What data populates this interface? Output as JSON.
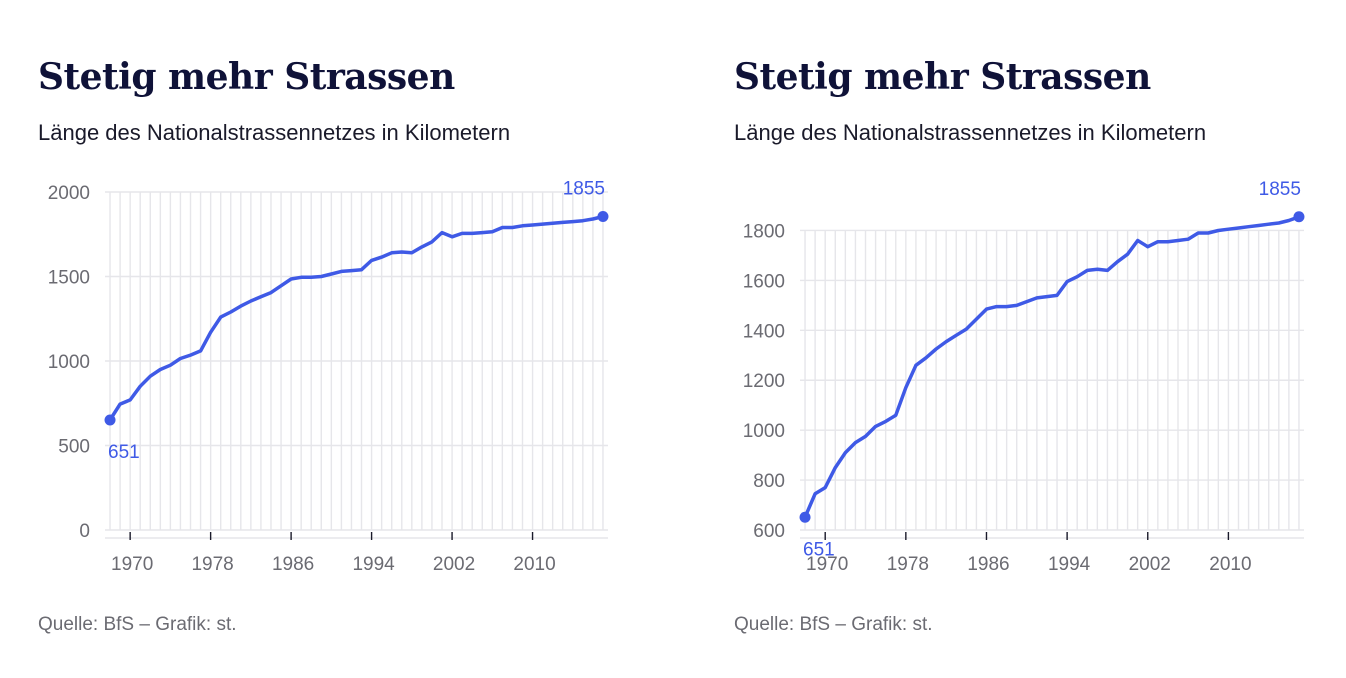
{
  "charts": [
    {
      "title": "Stetig mehr Strassen",
      "subtitle": "Länge des Nationalstrassennetzes in Kilometern",
      "source": "Quelle:  BfS – Grafik: st."
    },
    {
      "title": "Stetig mehr Strassen",
      "subtitle": "Länge des Nationalstrassennetzes in Kilometern",
      "source": "Quelle:  BfS – Grafik: st."
    }
  ],
  "line_color": "#3f5ae6",
  "chart_data": [
    {
      "type": "line",
      "title": "Stetig mehr Strassen",
      "subtitle": "Länge des Nationalstrassennetzes in Kilometern",
      "xlabel": "",
      "ylabel": "",
      "xlim": [
        1967.5,
        2017.5
      ],
      "ylim": [
        0,
        2000
      ],
      "yticks": [
        0,
        500,
        1000,
        1500,
        2000
      ],
      "xticks": [
        1970,
        1978,
        1986,
        1994,
        2002,
        2010
      ],
      "grid": "vertical-yearly-and-horizontal",
      "annotations": [
        {
          "x": 1968,
          "y": 651,
          "text": "651",
          "position": "below"
        },
        {
          "x": 2017,
          "y": 1855,
          "text": "1855",
          "position": "above"
        }
      ],
      "x": [
        1968,
        1969,
        1970,
        1971,
        1972,
        1973,
        1974,
        1975,
        1976,
        1977,
        1978,
        1979,
        1980,
        1981,
        1982,
        1983,
        1984,
        1985,
        1986,
        1987,
        1988,
        1989,
        1990,
        1991,
        1992,
        1993,
        1994,
        1995,
        1996,
        1997,
        1998,
        1999,
        2000,
        2001,
        2002,
        2003,
        2004,
        2005,
        2006,
        2007,
        2008,
        2009,
        2010,
        2011,
        2012,
        2013,
        2014,
        2015,
        2016,
        2017
      ],
      "values": [
        651,
        745,
        770,
        850,
        910,
        950,
        975,
        1015,
        1035,
        1060,
        1170,
        1260,
        1290,
        1325,
        1355,
        1380,
        1405,
        1445,
        1485,
        1495,
        1495,
        1500,
        1515,
        1530,
        1535,
        1540,
        1595,
        1615,
        1640,
        1645,
        1640,
        1675,
        1705,
        1760,
        1735,
        1755,
        1755,
        1760,
        1765,
        1790,
        1790,
        1800,
        1805,
        1810,
        1815,
        1820,
        1825,
        1830,
        1840,
        1855
      ]
    },
    {
      "type": "line",
      "title": "Stetig mehr Strassen",
      "subtitle": "Länge des Nationalstrassennetzes in Kilometern",
      "xlabel": "",
      "ylabel": "",
      "xlim": [
        1967.5,
        2017.5
      ],
      "ylim": [
        600,
        1850
      ],
      "yticks": [
        600,
        800,
        1000,
        1200,
        1400,
        1600,
        1800
      ],
      "xticks": [
        1970,
        1978,
        1986,
        1994,
        2002,
        2010
      ],
      "grid": "vertical-yearly-and-horizontal",
      "annotations": [
        {
          "x": 1968,
          "y": 651,
          "text": "651",
          "position": "below"
        },
        {
          "x": 2017,
          "y": 1855,
          "text": "1855",
          "position": "above"
        }
      ],
      "x": [
        1968,
        1969,
        1970,
        1971,
        1972,
        1973,
        1974,
        1975,
        1976,
        1977,
        1978,
        1979,
        1980,
        1981,
        1982,
        1983,
        1984,
        1985,
        1986,
        1987,
        1988,
        1989,
        1990,
        1991,
        1992,
        1993,
        1994,
        1995,
        1996,
        1997,
        1998,
        1999,
        2000,
        2001,
        2002,
        2003,
        2004,
        2005,
        2006,
        2007,
        2008,
        2009,
        2010,
        2011,
        2012,
        2013,
        2014,
        2015,
        2016,
        2017
      ],
      "values": [
        651,
        745,
        770,
        850,
        910,
        950,
        975,
        1015,
        1035,
        1060,
        1170,
        1260,
        1290,
        1325,
        1355,
        1380,
        1405,
        1445,
        1485,
        1495,
        1495,
        1500,
        1515,
        1530,
        1535,
        1540,
        1595,
        1615,
        1640,
        1645,
        1640,
        1675,
        1705,
        1760,
        1735,
        1755,
        1755,
        1760,
        1765,
        1790,
        1790,
        1800,
        1805,
        1810,
        1815,
        1820,
        1825,
        1830,
        1840,
        1855
      ]
    }
  ]
}
